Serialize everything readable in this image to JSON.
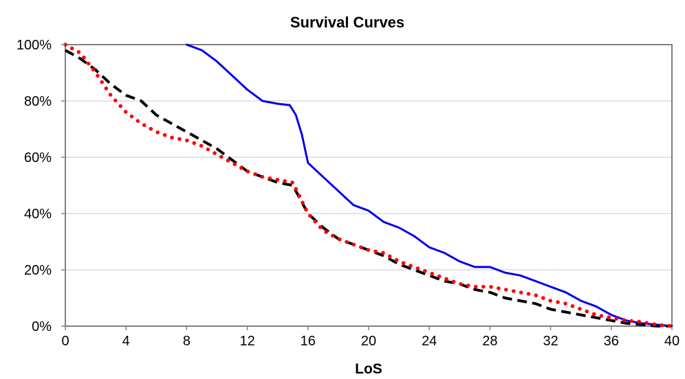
{
  "chart_data": {
    "type": "line",
    "title": "Survival Curves",
    "xlabel": "LoS",
    "ylabel": "",
    "xlim": [
      0,
      40
    ],
    "ylim": [
      0,
      100
    ],
    "x_ticks": [
      0,
      4,
      8,
      12,
      16,
      20,
      24,
      28,
      32,
      36,
      40
    ],
    "y_ticks": [
      0,
      20,
      40,
      60,
      80,
      100
    ],
    "x_tick_labels": [
      "0",
      "4",
      "8",
      "12",
      "16",
      "20",
      "24",
      "28",
      "32",
      "36",
      "40"
    ],
    "y_tick_labels": [
      "0%",
      "20%",
      "40%",
      "60%",
      "80%",
      "100%"
    ],
    "grid": true,
    "legend": "none",
    "series": [
      {
        "color": "#0000ee",
        "style": "solid",
        "x": [
          8,
          9,
          10,
          11,
          12,
          13,
          14,
          14.8,
          15.2,
          15.6,
          16,
          17,
          18,
          19,
          20,
          21,
          22,
          23,
          24,
          25,
          26,
          27,
          28,
          29,
          30,
          31,
          32,
          33,
          34,
          35,
          36,
          37,
          38,
          39,
          40
        ],
        "y": [
          100,
          98,
          94,
          89,
          84,
          80,
          79,
          78.5,
          75,
          68,
          58,
          53,
          48,
          43,
          41,
          37,
          35,
          32,
          28,
          26,
          23,
          21,
          21,
          19,
          18,
          16,
          14,
          12,
          9,
          7,
          4,
          2,
          1,
          0.5,
          0
        ]
      },
      {
        "color": "#000000",
        "style": "dashed",
        "x": [
          0,
          1,
          2,
          3,
          4,
          5,
          6,
          7,
          8,
          9,
          10,
          11,
          12,
          13,
          14,
          15,
          16,
          17,
          18,
          19,
          20,
          21,
          22,
          23,
          24,
          25,
          26,
          27,
          28,
          29,
          30,
          31,
          32,
          33,
          34,
          35,
          36,
          37,
          38,
          39,
          40
        ],
        "y": [
          98,
          95,
          91,
          86,
          82,
          80,
          75,
          72,
          69,
          66,
          63,
          59,
          55,
          53,
          51,
          50,
          40,
          35,
          31,
          29,
          27,
          25,
          22,
          20,
          18,
          16,
          15,
          13,
          12,
          10,
          9,
          8,
          6,
          5,
          4,
          3,
          2,
          1,
          0.5,
          0,
          0
        ]
      },
      {
        "color": "#ff0000",
        "style": "dotted",
        "x": [
          0,
          1,
          2,
          3,
          4,
          5,
          6,
          7,
          8,
          9,
          10,
          11,
          12,
          13,
          14,
          15,
          16,
          17,
          18,
          19,
          20,
          21,
          22,
          23,
          24,
          25,
          26,
          27,
          28,
          29,
          30,
          31,
          32,
          33,
          34,
          35,
          36,
          37,
          38,
          39,
          40
        ],
        "y": [
          100,
          97,
          90,
          82,
          76,
          72,
          69,
          67,
          66,
          64,
          61,
          58,
          55,
          53,
          52,
          51,
          40,
          34,
          31,
          29,
          27,
          26,
          23,
          21,
          19,
          17,
          15,
          14,
          14,
          13,
          12,
          11,
          9,
          8,
          6,
          4,
          3,
          2,
          1.5,
          0.5,
          0
        ]
      }
    ]
  }
}
